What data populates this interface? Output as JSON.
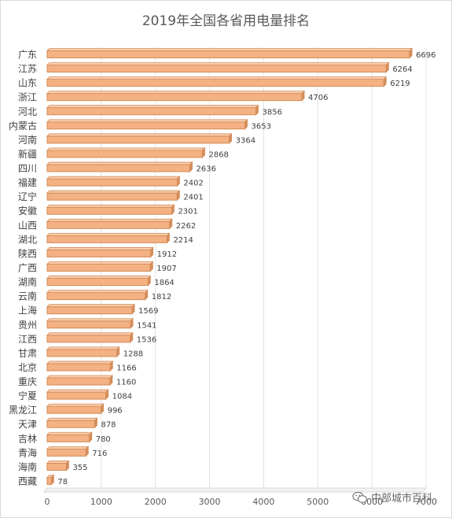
{
  "chart_data": {
    "type": "bar",
    "orientation": "horizontal",
    "title": "2019年全国各省用电量排名",
    "xlabel": "",
    "ylabel": "",
    "xlim": [
      0,
      7000
    ],
    "x_ticks": [
      0,
      1000,
      2000,
      3000,
      4000,
      5000,
      6000,
      7000
    ],
    "grid": true,
    "legend": "none",
    "bar_color": "#f4b183",
    "bar_edge_color": "#d28a55",
    "categories": [
      "广东",
      "江苏",
      "山东",
      "浙江",
      "河北",
      "内蒙古",
      "河南",
      "新疆",
      "四川",
      "福建",
      "辽宁",
      "安徽",
      "山西",
      "湖北",
      "陕西",
      "广西",
      "湖南",
      "云南",
      "上海",
      "贵州",
      "江西",
      "甘肃",
      "北京",
      "重庆",
      "宁夏",
      "黑龙江",
      "天津",
      "吉林",
      "青海",
      "海南",
      "西藏"
    ],
    "values": [
      6696,
      6264,
      6219,
      4706,
      3856,
      3653,
      3364,
      2868,
      2636,
      2402,
      2401,
      2301,
      2262,
      2214,
      1912,
      1907,
      1864,
      1812,
      1569,
      1541,
      1536,
      1288,
      1166,
      1160,
      1084,
      996,
      878,
      780,
      716,
      355,
      78
    ]
  },
  "watermark": {
    "text": "中部城市百科",
    "icon": "wechat-icon"
  }
}
